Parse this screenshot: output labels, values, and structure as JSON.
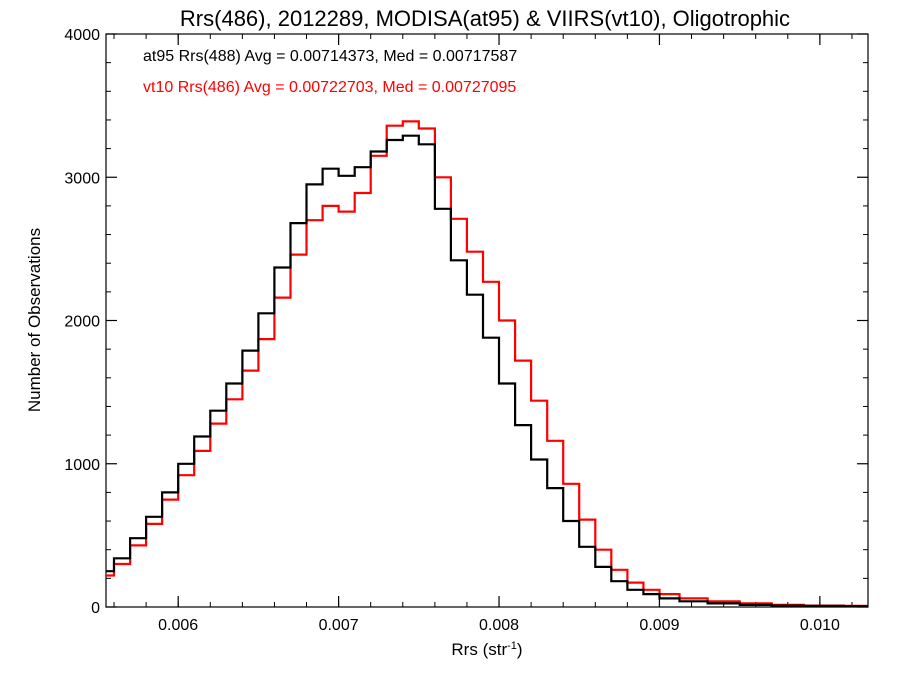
{
  "chart_data": {
    "type": "line",
    "title": "Rrs(486), 2012289, MODISA(at95) & VIIRS(vt10), Oligotrophic",
    "xlabel": "Rrs (str",
    "xlabel_sup": "-1",
    "xlabel_close": ")",
    "ylabel": "Number of Observations",
    "xlim": [
      0.00555,
      0.0103
    ],
    "ylim": [
      0,
      4000
    ],
    "xticks": [
      0.006,
      0.007,
      0.008,
      0.009,
      0.01
    ],
    "xtick_labels": [
      "0.006",
      "0.007",
      "0.008",
      "0.009",
      "0.010"
    ],
    "yticks": [
      0,
      1000,
      2000,
      3000,
      4000
    ],
    "ytick_labels": [
      "0",
      "1000",
      "2000",
      "3000",
      "4000"
    ],
    "grid": false,
    "legend_position": "top-left",
    "series": [
      {
        "name": "at95 Rrs(488) Avg = 0.00714373, Med = 0.00717587",
        "color": "#000000",
        "x": [
          0.00555,
          0.00565,
          0.00575,
          0.00585,
          0.00595,
          0.00605,
          0.00615,
          0.00625,
          0.00635,
          0.00645,
          0.00655,
          0.00665,
          0.00675,
          0.00685,
          0.00695,
          0.00705,
          0.00715,
          0.00725,
          0.00735,
          0.00745,
          0.00755,
          0.00765,
          0.00775,
          0.00785,
          0.00795,
          0.00805,
          0.00815,
          0.00825,
          0.00835,
          0.00845,
          0.00855,
          0.00865,
          0.00875,
          0.00885,
          0.00895,
          0.00905,
          0.0092,
          0.0094,
          0.0096,
          0.0098,
          0.01,
          0.0103
        ],
        "y": [
          250,
          340,
          480,
          630,
          800,
          1000,
          1190,
          1370,
          1560,
          1790,
          2050,
          2370,
          2680,
          2950,
          3060,
          3010,
          3070,
          3180,
          3260,
          3290,
          3230,
          2780,
          2420,
          2180,
          1880,
          1560,
          1270,
          1030,
          830,
          600,
          420,
          280,
          180,
          120,
          90,
          60,
          40,
          25,
          15,
          10,
          8,
          5
        ]
      },
      {
        "name": "vt10 Rrs(486) Avg = 0.00722703, Med = 0.00727095",
        "color": "#ff0000",
        "x": [
          0.00555,
          0.00565,
          0.00575,
          0.00585,
          0.00595,
          0.00605,
          0.00615,
          0.00625,
          0.00635,
          0.00645,
          0.00655,
          0.00665,
          0.00675,
          0.00685,
          0.00695,
          0.00705,
          0.00715,
          0.00725,
          0.00735,
          0.00745,
          0.00755,
          0.00765,
          0.00775,
          0.00785,
          0.00795,
          0.00805,
          0.00815,
          0.00825,
          0.00835,
          0.00845,
          0.00855,
          0.00865,
          0.00875,
          0.00885,
          0.00895,
          0.00905,
          0.0092,
          0.0094,
          0.0096,
          0.0098,
          0.01,
          0.0103
        ],
        "y": [
          220,
          300,
          430,
          580,
          750,
          920,
          1090,
          1280,
          1450,
          1650,
          1870,
          2160,
          2460,
          2700,
          2800,
          2760,
          2890,
          3150,
          3360,
          3390,
          3340,
          3000,
          2710,
          2480,
          2270,
          2000,
          1720,
          1440,
          1160,
          860,
          610,
          400,
          260,
          170,
          120,
          90,
          60,
          40,
          25,
          15,
          10,
          8
        ]
      }
    ]
  }
}
